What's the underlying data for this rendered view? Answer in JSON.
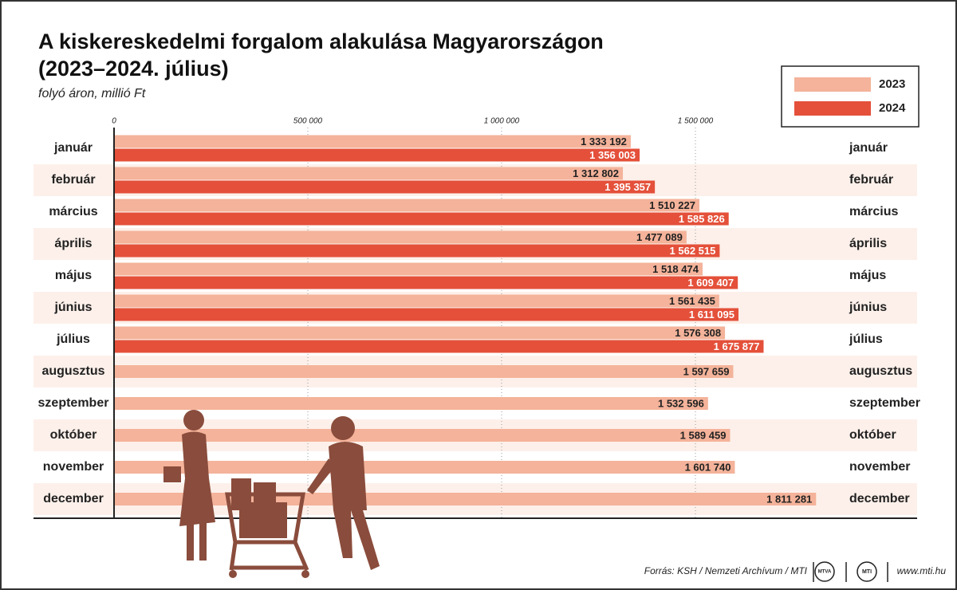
{
  "chart_data": {
    "type": "bar",
    "orientation": "horizontal",
    "title": [
      "A kiskereskedelmi forgalom alakulása Magyarországon",
      "(2023–2024. július)"
    ],
    "subtitle": "folyó áron, millió Ft",
    "categories": [
      "január",
      "február",
      "március",
      "április",
      "május",
      "június",
      "július",
      "augusztus",
      "szeptember",
      "október",
      "november",
      "december"
    ],
    "series": [
      {
        "name": "2023",
        "color": "#f4b39a",
        "values": [
          1333192,
          1312802,
          1510227,
          1477089,
          1518474,
          1561435,
          1576308,
          1597659,
          1532596,
          1589459,
          1601740,
          1811281
        ],
        "value_labels": [
          "1 333 192",
          "1 312 802",
          "1 510 227",
          "1 477 089",
          "1 518 474",
          "1 561 435",
          "1 576 308",
          "1 597 659",
          "1 532 596",
          "1 589 459",
          "1 601 740",
          "1 811 281"
        ]
      },
      {
        "name": "2024",
        "color": "#e4503a",
        "values": [
          1356003,
          1395357,
          1585826,
          1562515,
          1609407,
          1611095,
          1675877,
          null,
          null,
          null,
          null,
          null
        ],
        "value_labels": [
          "1 356 003",
          "1 395 357",
          "1 585 826",
          "1 562 515",
          "1 609 407",
          "1 611 095",
          "1 675 877",
          null,
          null,
          null,
          null,
          null
        ]
      }
    ],
    "xlim": [
      0,
      2070000
    ],
    "xticks": [
      0,
      {
        "value": 500000,
        "label": "500 000"
      },
      {
        "value": 1000000,
        "label": "1 000 000"
      },
      {
        "value": 1500000,
        "label": "1 500 000"
      }
    ],
    "grid": true,
    "legend": "top-right",
    "source": "Forrás: KSH / Nemzeti Archívum / MTI",
    "logos": [
      "MTVA",
      "MTI"
    ],
    "website": "www.mti.hu"
  }
}
